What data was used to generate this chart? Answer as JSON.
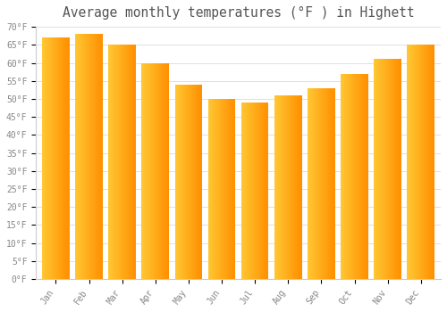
{
  "title": "Average monthly temperatures (°F ) in Highett",
  "months": [
    "Jan",
    "Feb",
    "Mar",
    "Apr",
    "May",
    "Jun",
    "Jul",
    "Aug",
    "Sep",
    "Oct",
    "Nov",
    "Dec"
  ],
  "values": [
    67,
    68,
    65,
    60,
    54,
    50,
    49,
    51,
    53,
    57,
    61,
    65
  ],
  "bar_color_left": "#FFD966",
  "bar_color_right": "#FFA500",
  "bar_color_mid": "#FFB833",
  "ylim": [
    0,
    70
  ],
  "yticks": [
    0,
    5,
    10,
    15,
    20,
    25,
    30,
    35,
    40,
    45,
    50,
    55,
    60,
    65,
    70
  ],
  "ytick_labels": [
    "0°F",
    "5°F",
    "10°F",
    "15°F",
    "20°F",
    "25°F",
    "30°F",
    "35°F",
    "40°F",
    "45°F",
    "50°F",
    "55°F",
    "60°F",
    "65°F",
    "70°F"
  ],
  "background_color": "#FFFFFF",
  "grid_color": "#E0E0E0",
  "title_fontsize": 10.5,
  "tick_fontsize": 7,
  "bar_width": 0.82
}
